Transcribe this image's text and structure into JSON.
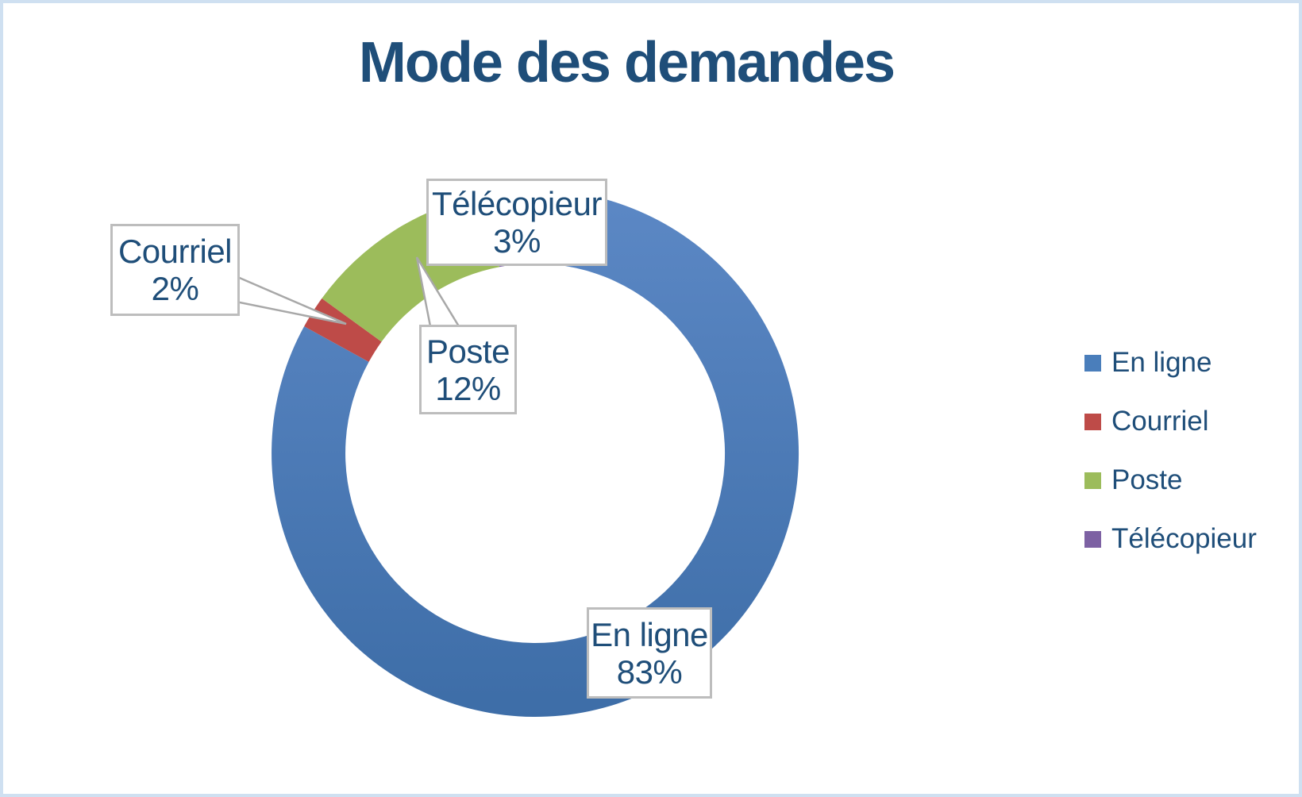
{
  "frame": {
    "background": "#FFFFFF",
    "border_color": "#CFE0F1"
  },
  "chart_data": {
    "type": "pie",
    "subtype": "donut",
    "title": "Mode des demandes",
    "categories": [
      "En ligne",
      "Courriel",
      "Poste",
      "Télécopieur"
    ],
    "values": [
      83,
      2,
      12,
      3
    ],
    "unit": "%",
    "colors": [
      "#4A7EBB",
      "#BE4B48",
      "#9CBC5B",
      "#7D61A3"
    ],
    "blue_slice_gradient": [
      "#5C88C5",
      "#3D6DA7"
    ],
    "hole_ratio": 0.72,
    "start_angle_deg": 0,
    "direction": "clockwise",
    "legend_position": "right",
    "title_color": "#1F4E79",
    "label_text_color": "#1F4E79",
    "data_labels": [
      {
        "label": "En ligne",
        "pct": "83%"
      },
      {
        "label": "Courriel",
        "pct": "2%"
      },
      {
        "label": "Poste",
        "pct": "12%"
      },
      {
        "label": "Télécopieur",
        "pct": "3%"
      }
    ]
  }
}
